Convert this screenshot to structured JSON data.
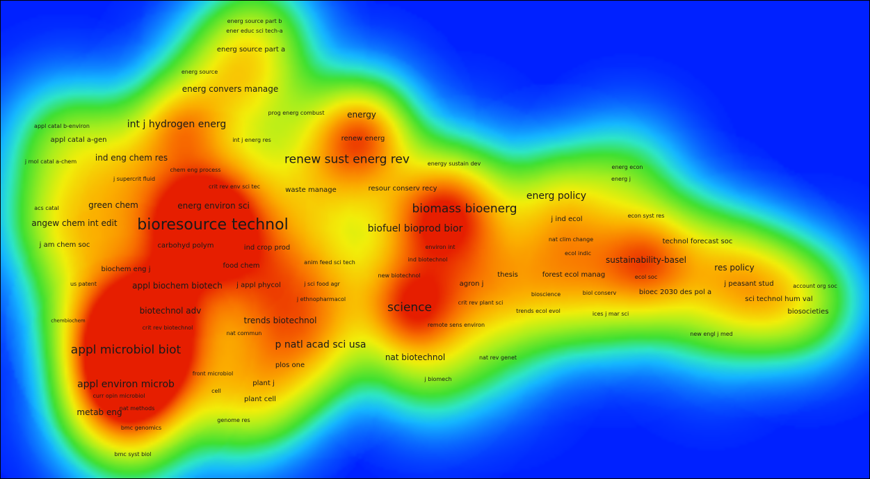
{
  "colors": {
    "background": "#0021ff",
    "ramp": [
      "#0021ff",
      "#16b8ff",
      "#2ee6c8",
      "#3fe032",
      "#a6ee1e",
      "#f2ee0a",
      "#fbb000",
      "#f86e00",
      "#e61e00"
    ],
    "label": "#1a1a1a",
    "frame_border": "#000000"
  },
  "terms": [
    {
      "text": "energ source part b",
      "level": 1
    },
    {
      "text": "ener educ sci tech-a",
      "level": 1
    },
    {
      "text": "energ source part a",
      "level": 2
    },
    {
      "text": "energ source",
      "level": 1
    },
    {
      "text": "energ convers manage",
      "level": 3
    },
    {
      "text": "prog energ combust",
      "level": 1
    },
    {
      "text": "energy",
      "level": 3
    },
    {
      "text": "appl catal b-environ",
      "level": 1
    },
    {
      "text": "int j hydrogen energ",
      "level": 4
    },
    {
      "text": "appl catal a-gen",
      "level": 2
    },
    {
      "text": "int j energ res",
      "level": 1
    },
    {
      "text": "renew energ",
      "level": 2
    },
    {
      "text": "j mol catal a-chem",
      "level": 1
    },
    {
      "text": "ind eng chem res",
      "level": 3
    },
    {
      "text": "renew sust energ rev",
      "level": 5
    },
    {
      "text": "energy sustain dev",
      "level": 1
    },
    {
      "text": "chem eng process",
      "level": 1
    },
    {
      "text": "energ econ",
      "level": 1
    },
    {
      "text": "j supercrit fluid",
      "level": 1
    },
    {
      "text": "energ j",
      "level": 1
    },
    {
      "text": "crit rev env sci tec",
      "level": 1
    },
    {
      "text": "waste manage",
      "level": 2
    },
    {
      "text": "resour conserv recy",
      "level": 2
    },
    {
      "text": "energ policy",
      "level": 4
    },
    {
      "text": "acs catal",
      "level": 1
    },
    {
      "text": "green chem",
      "level": 3
    },
    {
      "text": "energ environ sci",
      "level": 3
    },
    {
      "text": "biomass bioenerg",
      "level": 5
    },
    {
      "text": "econ syst res",
      "level": 1
    },
    {
      "text": "j ind ecol",
      "level": 2
    },
    {
      "text": "angew chem int edit",
      "level": 3
    },
    {
      "text": "bioresource technol",
      "level": 6
    },
    {
      "text": "biofuel bioprod bior",
      "level": 4
    },
    {
      "text": "nat clim change",
      "level": 1
    },
    {
      "text": "technol forecast soc",
      "level": 2
    },
    {
      "text": "j am chem soc",
      "level": 2
    },
    {
      "text": "carbohyd polym",
      "level": 2
    },
    {
      "text": "ind crop prod",
      "level": 2
    },
    {
      "text": "environ int",
      "level": 1
    },
    {
      "text": "ecol indic",
      "level": 1
    },
    {
      "text": "sustainability-basel",
      "level": 3
    },
    {
      "text": "food chem",
      "level": 2
    },
    {
      "text": "anim feed sci tech",
      "level": 1
    },
    {
      "text": "ind biotechnol",
      "level": 1
    },
    {
      "text": "res policy",
      "level": 3
    },
    {
      "text": "biochem eng j",
      "level": 2
    },
    {
      "text": "new biotechnol",
      "level": 1
    },
    {
      "text": "thesis",
      "level": 2
    },
    {
      "text": "forest ecol manag",
      "level": 2
    },
    {
      "text": "ecol soc",
      "level": 1
    },
    {
      "text": "us patent",
      "level": 1
    },
    {
      "text": "appl biochem biotech",
      "level": 3
    },
    {
      "text": "j appl phycol",
      "level": 2
    },
    {
      "text": "j sci food agr",
      "level": 1
    },
    {
      "text": "agron j",
      "level": 2
    },
    {
      "text": "bioscience",
      "level": 1
    },
    {
      "text": "biol conserv",
      "level": 1
    },
    {
      "text": "bioec 2030 des pol a",
      "level": 2
    },
    {
      "text": "j peasant stud",
      "level": 2
    },
    {
      "text": "account org soc",
      "level": 1
    },
    {
      "text": "j ethnopharmacol",
      "level": 1
    },
    {
      "text": "crit rev plant sci",
      "level": 1
    },
    {
      "text": "sci technol hum val",
      "level": 2
    },
    {
      "text": "science",
      "level": 5
    },
    {
      "text": "chembiochem",
      "level": 0
    },
    {
      "text": "biotechnol adv",
      "level": 3
    },
    {
      "text": "trends ecol evol",
      "level": 1
    },
    {
      "text": "ices j mar sci",
      "level": 1
    },
    {
      "text": "biosocieties",
      "level": 2
    },
    {
      "text": "crit rev biotechnol",
      "level": 1
    },
    {
      "text": "trends biotechnol",
      "level": 3
    },
    {
      "text": "remote sens environ",
      "level": 1
    },
    {
      "text": "nat commun",
      "level": 1
    },
    {
      "text": "new engl j med",
      "level": 1
    },
    {
      "text": "appl microbiol biot",
      "level": 5
    },
    {
      "text": "p natl acad sci usa",
      "level": 4
    },
    {
      "text": "nat biotechnol",
      "level": 3
    },
    {
      "text": "nat rev genet",
      "level": 1
    },
    {
      "text": "front microbiol",
      "level": 1
    },
    {
      "text": "plos one",
      "level": 2
    },
    {
      "text": "appl environ microb",
      "level": 4
    },
    {
      "text": "j biomech",
      "level": 1
    },
    {
      "text": "cell",
      "level": 1
    },
    {
      "text": "plant j",
      "level": 2
    },
    {
      "text": "curr opin microbiol",
      "level": 1
    },
    {
      "text": "plant cell",
      "level": 2
    },
    {
      "text": "metab eng",
      "level": 3
    },
    {
      "text": "nat methods",
      "level": 1
    },
    {
      "text": "bmc genomics",
      "level": 1
    },
    {
      "text": "genome res",
      "level": 1
    },
    {
      "text": "bmc syst biol",
      "level": 1
    }
  ]
}
